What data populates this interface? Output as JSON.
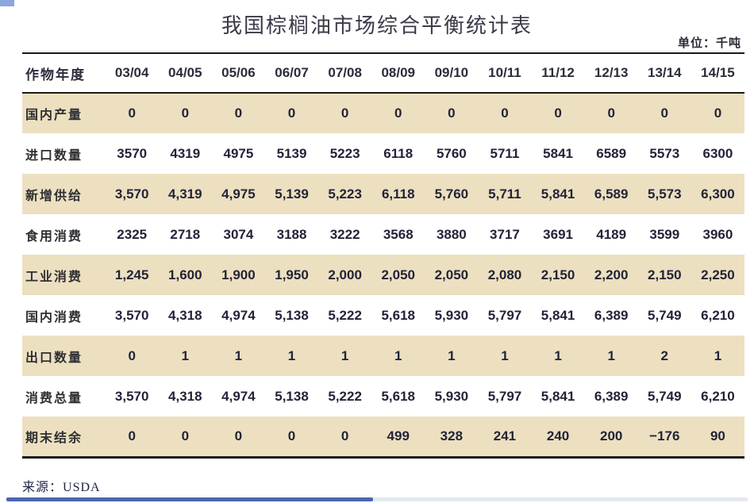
{
  "page": {
    "title": "我国棕榈油市场综合平衡统计表",
    "unit_label": "单位：千吨",
    "source_label": "来源：",
    "source_value": "USDA"
  },
  "colors": {
    "row_band": "#ece0c0",
    "rule": "#1a1a1a",
    "number_text": "#232338",
    "accent_blue": "#4a67b0",
    "corner_accent": "#8ea6dd"
  },
  "table": {
    "header": [
      "作物年度",
      "03/04",
      "04/05",
      "05/06",
      "06/07",
      "07/08",
      "08/09",
      "09/10",
      "10/11",
      "11/12",
      "12/13",
      "13/14",
      "14/15"
    ],
    "rows": [
      {
        "label": "国内产量",
        "values": [
          "0",
          "0",
          "0",
          "0",
          "0",
          "0",
          "0",
          "0",
          "0",
          "0",
          "0",
          "0"
        ]
      },
      {
        "label": "进口数量",
        "values": [
          "3570",
          "4319",
          "4975",
          "5139",
          "5223",
          "6118",
          "5760",
          "5711",
          "5841",
          "6589",
          "5573",
          "6300"
        ]
      },
      {
        "label": "新增供给",
        "values": [
          "3,570",
          "4,319",
          "4,975",
          "5,139",
          "5,223",
          "6,118",
          "5,760",
          "5,711",
          "5,841",
          "6,589",
          "5,573",
          "6,300"
        ]
      },
      {
        "label": "食用消费",
        "values": [
          "2325",
          "2718",
          "3074",
          "3188",
          "3222",
          "3568",
          "3880",
          "3717",
          "3691",
          "4189",
          "3599",
          "3960"
        ]
      },
      {
        "label": "工业消费",
        "values": [
          "1,245",
          "1,600",
          "1,900",
          "1,950",
          "2,000",
          "2,050",
          "2,050",
          "2,080",
          "2,150",
          "2,200",
          "2,150",
          "2,250"
        ]
      },
      {
        "label": "国内消费",
        "values": [
          "3,570",
          "4,318",
          "4,974",
          "5,138",
          "5,222",
          "5,618",
          "5,930",
          "5,797",
          "5,841",
          "6,389",
          "5,749",
          "6,210"
        ]
      },
      {
        "label": "出口数量",
        "values": [
          "0",
          "1",
          "1",
          "1",
          "1",
          "1",
          "1",
          "1",
          "1",
          "1",
          "2",
          "1"
        ]
      },
      {
        "label": "消费总量",
        "values": [
          "3,570",
          "4,318",
          "4,974",
          "5,138",
          "5,222",
          "5,618",
          "5,930",
          "5,797",
          "5,841",
          "6,389",
          "5,749",
          "6,210"
        ]
      },
      {
        "label": "期末结余",
        "values": [
          "0",
          "0",
          "0",
          "0",
          "0",
          "499",
          "328",
          "241",
          "240",
          "200",
          "−176",
          "90"
        ]
      }
    ]
  },
  "chart_data": {
    "type": "table",
    "title": "我国棕榈油市场综合平衡统计表",
    "unit": "千吨",
    "categories": [
      "03/04",
      "04/05",
      "05/06",
      "06/07",
      "07/08",
      "08/09",
      "09/10",
      "10/11",
      "11/12",
      "12/13",
      "13/14",
      "14/15"
    ],
    "row_header_label": "作物年度",
    "series": [
      {
        "name": "国内产量",
        "values": [
          0,
          0,
          0,
          0,
          0,
          0,
          0,
          0,
          0,
          0,
          0,
          0
        ]
      },
      {
        "name": "进口数量",
        "values": [
          3570,
          4319,
          4975,
          5139,
          5223,
          6118,
          5760,
          5711,
          5841,
          6589,
          5573,
          6300
        ]
      },
      {
        "name": "新增供给",
        "values": [
          3570,
          4319,
          4975,
          5139,
          5223,
          6118,
          5760,
          5711,
          5841,
          6589,
          5573,
          6300
        ]
      },
      {
        "name": "食用消费",
        "values": [
          2325,
          2718,
          3074,
          3188,
          3222,
          3568,
          3880,
          3717,
          3691,
          4189,
          3599,
          3960
        ]
      },
      {
        "name": "工业消费",
        "values": [
          1245,
          1600,
          1900,
          1950,
          2000,
          2050,
          2050,
          2080,
          2150,
          2200,
          2150,
          2250
        ]
      },
      {
        "name": "国内消费",
        "values": [
          3570,
          4318,
          4974,
          5138,
          5222,
          5618,
          5930,
          5797,
          5841,
          6389,
          5749,
          6210
        ]
      },
      {
        "name": "出口数量",
        "values": [
          0,
          1,
          1,
          1,
          1,
          1,
          1,
          1,
          1,
          1,
          2,
          1
        ]
      },
      {
        "name": "消费总量",
        "values": [
          3570,
          4318,
          4974,
          5138,
          5222,
          5618,
          5930,
          5797,
          5841,
          6389,
          5749,
          6210
        ]
      },
      {
        "name": "期末结余",
        "values": [
          0,
          0,
          0,
          0,
          0,
          499,
          328,
          241,
          240,
          200,
          -176,
          90
        ]
      }
    ],
    "source": "USDA"
  }
}
